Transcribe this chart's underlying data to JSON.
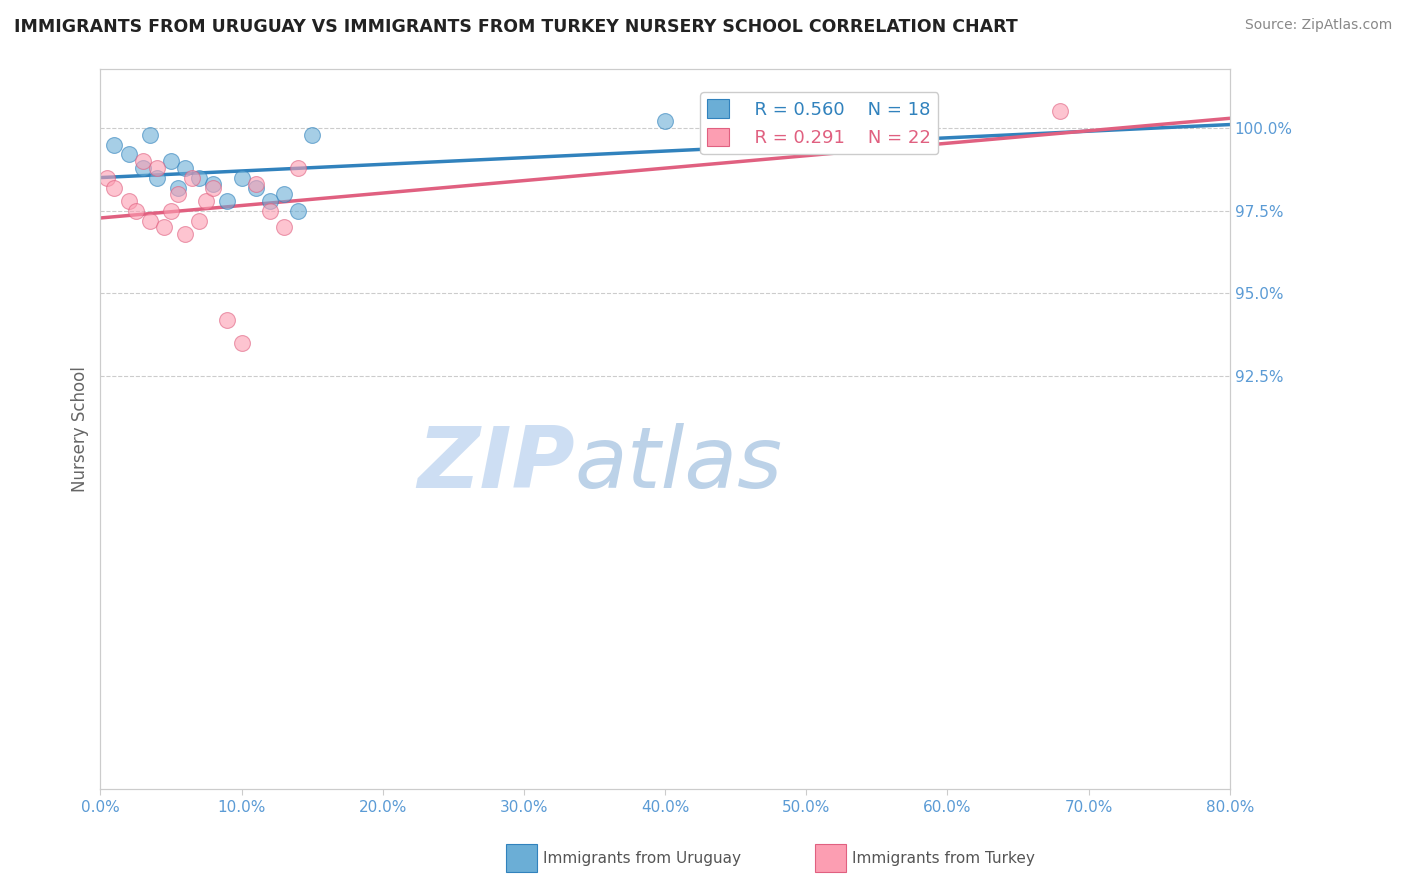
{
  "title": "IMMIGRANTS FROM URUGUAY VS IMMIGRANTS FROM TURKEY NURSERY SCHOOL CORRELATION CHART",
  "source": "Source: ZipAtlas.com",
  "ylabel": "Nursery School",
  "xlim": [
    0.0,
    80.0
  ],
  "ylim": [
    80.0,
    101.8
  ],
  "yticks": [
    92.5,
    95.0,
    97.5,
    100.0
  ],
  "xticks": [
    0.0,
    10.0,
    20.0,
    30.0,
    40.0,
    50.0,
    60.0,
    70.0,
    80.0
  ],
  "legend_labels": [
    "Immigrants from Uruguay",
    "Immigrants from Turkey"
  ],
  "legend_r_uruguay": "R = 0.560",
  "legend_n_uruguay": "N = 18",
  "legend_r_turkey": "R = 0.291",
  "legend_n_turkey": "N = 22",
  "color_uruguay": "#6baed6",
  "color_turkey": "#fc9EB2",
  "color_line_uruguay": "#3182bd",
  "color_line_turkey": "#e06080",
  "color_axis_labels": "#5b9bd5",
  "watermark_zip": "ZIP",
  "watermark_atlas": "atlas",
  "uruguay_x": [
    1.0,
    2.0,
    3.0,
    3.5,
    4.0,
    5.0,
    5.5,
    6.0,
    7.0,
    8.0,
    9.0,
    10.0,
    11.0,
    12.0,
    13.0,
    14.0,
    15.0,
    40.0
  ],
  "uruguay_y": [
    99.5,
    99.2,
    98.8,
    99.8,
    98.5,
    99.0,
    98.2,
    98.8,
    98.5,
    98.3,
    97.8,
    98.5,
    98.2,
    97.8,
    98.0,
    97.5,
    99.8,
    100.2
  ],
  "turkey_x": [
    0.5,
    1.0,
    2.0,
    2.5,
    3.0,
    3.5,
    4.0,
    4.5,
    5.0,
    5.5,
    6.0,
    6.5,
    7.0,
    7.5,
    8.0,
    9.0,
    10.0,
    11.0,
    12.0,
    13.0,
    14.0,
    68.0
  ],
  "turkey_y": [
    98.5,
    98.2,
    97.8,
    97.5,
    99.0,
    97.2,
    98.8,
    97.0,
    97.5,
    98.0,
    96.8,
    98.5,
    97.2,
    97.8,
    98.2,
    94.2,
    93.5,
    98.3,
    97.5,
    97.0,
    98.8,
    100.5
  ],
  "background_color": "#ffffff"
}
